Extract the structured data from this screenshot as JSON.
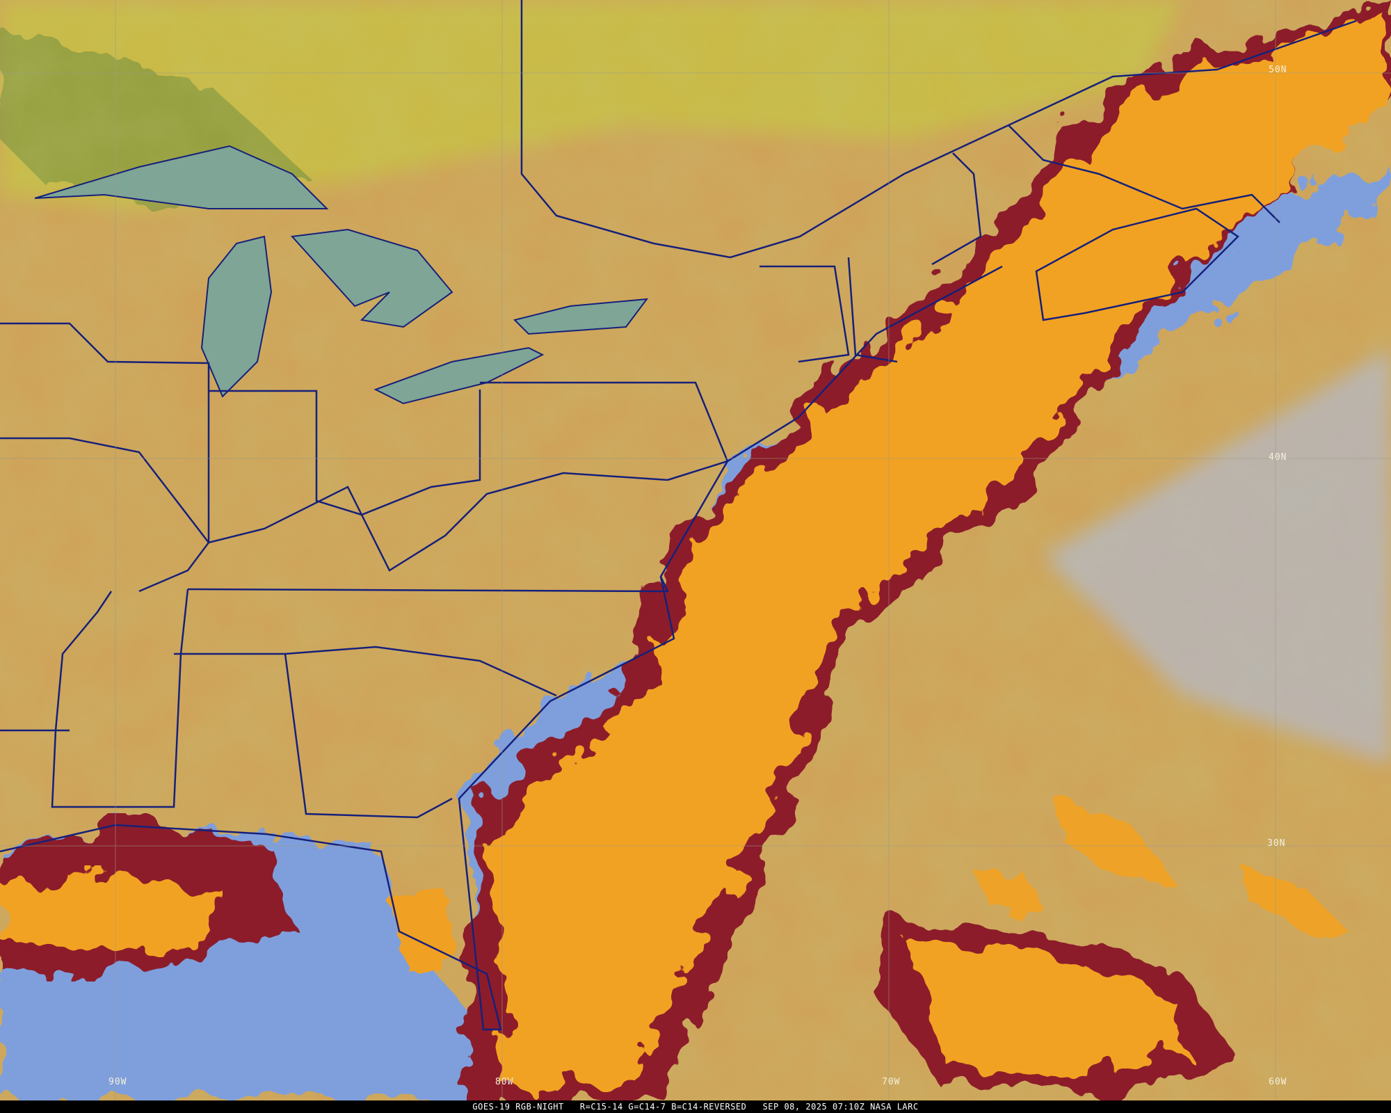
{
  "caption": {
    "satellite": "GOES-19 RGB-NIGHT",
    "channels": "R=C15-14 G=C14-7 B=C14-REVERSED",
    "datetime": "SEP 08, 2025 07:10Z",
    "source": "NASA LARC"
  },
  "latitude_labels": [
    "50N",
    "40N",
    "30N"
  ],
  "longitude_labels": [
    "90W",
    "80W",
    "70W",
    "60W"
  ],
  "colors": {
    "land_clear": "#cfa45a",
    "low_cloud_ocean": "#7f9fdc",
    "high_cloud": "#f2a224",
    "cold_cloud_edge": "#8c1c2c",
    "boundaries": "#16207a",
    "gridlines": "#9a9a8a"
  }
}
